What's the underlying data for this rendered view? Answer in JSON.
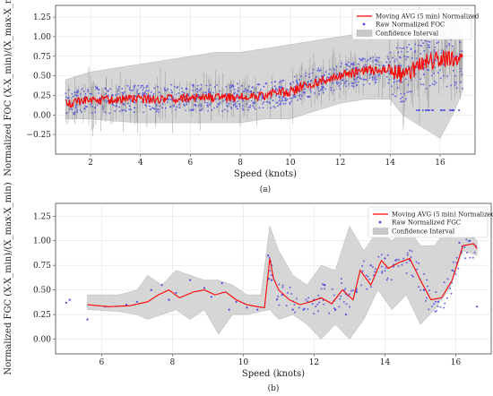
{
  "chart_data": [
    {
      "type": "line",
      "panel_label": "(a)",
      "xlabel": "Speed (knots)",
      "ylabel": "Normalized FOC (X-X_min)/(X_max-X_min)",
      "xlim": [
        0.6,
        17.4
      ],
      "ylim": [
        -0.5,
        1.4
      ],
      "x_ticks": [
        2,
        4,
        6,
        8,
        10,
        12,
        14,
        16
      ],
      "y_ticks": [
        -0.25,
        0.0,
        0.25,
        0.5,
        0.75,
        1.0,
        1.25
      ],
      "x_tick_labels": [
        "2",
        "4",
        "6",
        "8",
        "10",
        "12",
        "14",
        "16"
      ],
      "y_tick_labels": [
        "−0.25",
        "0.00",
        "0.25",
        "0.50",
        "0.75",
        "1.00",
        "1.25"
      ],
      "grid": true,
      "legend_position": "top-right",
      "legend": [
        "Moving AVG (5 min) Normalized",
        "Raw Normalized FOC",
        "Confidence Interval"
      ],
      "series": [
        {
          "name": "Moving AVG (5 min) Normalized",
          "kind": "line",
          "color": "#ff0000",
          "x": [
            1.0,
            2.0,
            3.0,
            4.0,
            5.0,
            6.0,
            7.0,
            8.0,
            9.0,
            10.0,
            10.5,
            11.0,
            11.5,
            12.0,
            12.5,
            13.0,
            13.5,
            14.0,
            14.5,
            15.0,
            15.5,
            16.0,
            16.5,
            16.9
          ],
          "y": [
            0.15,
            0.18,
            0.2,
            0.2,
            0.21,
            0.22,
            0.22,
            0.23,
            0.25,
            0.3,
            0.36,
            0.42,
            0.47,
            0.5,
            0.53,
            0.56,
            0.57,
            0.58,
            0.5,
            0.6,
            0.68,
            0.72,
            0.7,
            0.68
          ]
        },
        {
          "name": "Raw Normalized FOC",
          "kind": "scatter",
          "color": "#4a4ae0"
        },
        {
          "name": "Confidence Interval",
          "kind": "band",
          "color": "#c8c8c8",
          "x": [
            1.0,
            2.0,
            3.0,
            4.0,
            5.0,
            6.0,
            7.0,
            8.0,
            9.0,
            10.0,
            11.0,
            12.0,
            13.0,
            14.0,
            14.5,
            15.0,
            15.5,
            16.0,
            16.5,
            16.9
          ],
          "lower": [
            -0.05,
            -0.05,
            -0.08,
            -0.1,
            -0.1,
            -0.1,
            -0.1,
            -0.1,
            -0.05,
            -0.05,
            0.05,
            0.15,
            0.2,
            0.2,
            0.0,
            -0.1,
            -0.2,
            -0.3,
            0.0,
            0.3
          ],
          "upper": [
            0.45,
            0.55,
            0.6,
            0.65,
            0.7,
            0.75,
            0.8,
            0.8,
            0.85,
            0.9,
            0.95,
            1.0,
            1.05,
            1.1,
            1.15,
            1.2,
            1.25,
            1.3,
            1.25,
            1.1
          ]
        }
      ]
    },
    {
      "type": "line",
      "panel_label": "(b)",
      "xlabel": "Speed (knots)",
      "ylabel": "Normalized FGC (X-X_min)/(X_max-X_min)",
      "xlim": [
        4.7,
        17.0
      ],
      "ylim": [
        -0.15,
        1.38
      ],
      "x_ticks": [
        6,
        8,
        10,
        12,
        14,
        16
      ],
      "y_ticks": [
        0.0,
        0.25,
        0.5,
        0.75,
        1.0,
        1.25
      ],
      "x_tick_labels": [
        "6",
        "8",
        "10",
        "12",
        "14",
        "16"
      ],
      "y_tick_labels": [
        "0.00",
        "0.25",
        "0.50",
        "0.75",
        "1.00",
        "1.25"
      ],
      "grid": true,
      "legend_position": "top-right",
      "legend": [
        "Moving AVG (5 min) Normalized",
        "Raw Normalized FGC",
        "Confidence Interval"
      ],
      "series": [
        {
          "name": "Moving AVG (5 min) Normalized",
          "kind": "line",
          "color": "#ff0000",
          "x": [
            5.6,
            6.2,
            6.8,
            7.3,
            7.6,
            7.9,
            8.2,
            8.6,
            8.9,
            9.2,
            9.5,
            9.8,
            10.1,
            10.4,
            10.6,
            10.75,
            10.85,
            11.0,
            11.3,
            11.6,
            11.9,
            12.2,
            12.5,
            12.8,
            13.1,
            13.3,
            13.6,
            13.9,
            14.1,
            14.4,
            14.7,
            15.0,
            15.3,
            15.6,
            15.9,
            16.2,
            16.5,
            16.6
          ],
          "y": [
            0.35,
            0.33,
            0.34,
            0.38,
            0.45,
            0.5,
            0.42,
            0.48,
            0.5,
            0.45,
            0.48,
            0.4,
            0.35,
            0.33,
            0.32,
            0.82,
            0.62,
            0.5,
            0.4,
            0.35,
            0.38,
            0.42,
            0.36,
            0.5,
            0.4,
            0.7,
            0.55,
            0.8,
            0.72,
            0.78,
            0.82,
            0.6,
            0.4,
            0.42,
            0.6,
            0.95,
            0.97,
            0.92
          ]
        },
        {
          "name": "Raw Normalized FGC",
          "kind": "scatter",
          "color": "#4a4ae0",
          "x": [
            5.0,
            5.1,
            5.6,
            6.1,
            6.7,
            7.0,
            7.4,
            7.7,
            7.9,
            8.1,
            8.5,
            8.9,
            9.1,
            9.4,
            9.6,
            9.8,
            10.1,
            10.4,
            10.7,
            10.8,
            11.1,
            11.4,
            11.7,
            12.0,
            12.3,
            12.6,
            12.9,
            13.2,
            13.6,
            14.0,
            14.3,
            14.7,
            15.1,
            15.5,
            15.9,
            16.1,
            16.4,
            16.6
          ],
          "y": [
            0.37,
            0.4,
            0.2,
            0.33,
            0.35,
            0.38,
            0.5,
            0.55,
            0.4,
            0.47,
            0.6,
            0.52,
            0.43,
            0.57,
            0.3,
            0.38,
            0.32,
            0.3,
            0.85,
            0.6,
            0.45,
            0.3,
            0.3,
            0.4,
            0.55,
            0.3,
            0.25,
            0.48,
            0.75,
            0.82,
            0.8,
            0.8,
            0.5,
            0.38,
            0.7,
            0.98,
            1.0,
            0.33
          ]
        },
        {
          "name": "Confidence Interval",
          "kind": "band",
          "color": "#c8c8c8",
          "x": [
            5.6,
            6.5,
            7.0,
            7.3,
            7.7,
            8.1,
            8.5,
            8.9,
            9.3,
            9.7,
            10.1,
            10.5,
            10.75,
            11.0,
            11.4,
            11.8,
            12.2,
            12.6,
            13.0,
            13.4,
            13.8,
            14.2,
            14.6,
            15.0,
            15.4,
            15.8,
            16.2,
            16.6
          ],
          "lower": [
            0.3,
            0.28,
            0.25,
            0.2,
            0.25,
            0.3,
            0.2,
            0.3,
            0.05,
            0.25,
            0.25,
            0.28,
            0.3,
            0.2,
            0.25,
            0.15,
            0.0,
            0.15,
            0.0,
            0.2,
            0.5,
            0.3,
            0.45,
            0.15,
            0.3,
            0.5,
            0.9,
            0.85
          ],
          "upper": [
            0.45,
            0.45,
            0.5,
            0.65,
            0.55,
            0.7,
            0.65,
            0.6,
            0.6,
            0.55,
            0.45,
            0.45,
            1.15,
            0.9,
            0.65,
            0.55,
            0.75,
            0.7,
            1.15,
            0.9,
            1.1,
            1.0,
            1.15,
            0.95,
            0.95,
            1.15,
            1.15,
            1.0
          ]
        }
      ]
    }
  ]
}
